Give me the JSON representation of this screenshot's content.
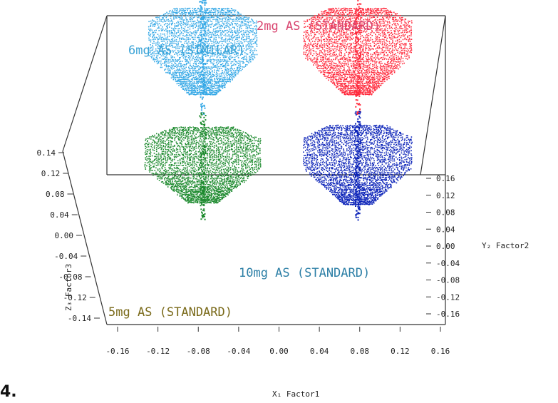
{
  "chart_data": {
    "type": "scatter",
    "title": "",
    "xlabel": "X₁ Factor1",
    "ylabel": "Y₂ Factor2",
    "zlabel": "Z₃ Factor3",
    "xlim": [
      -0.16,
      0.16
    ],
    "ylim": [
      -0.16,
      0.16
    ],
    "zlim": [
      -0.14,
      0.14
    ],
    "x_ticks": [
      "-0.16",
      "-0.12",
      "-0.08",
      "-0.04",
      "0.00",
      "0.04",
      "0.08",
      "0.12",
      "0.16"
    ],
    "y_ticks": [
      "0.16",
      "0.12",
      "0.08",
      "0.04",
      "0.00",
      "-0.04",
      "-0.08",
      "-0.12",
      "-0.16"
    ],
    "z_ticks": [
      "0.14",
      "0.12",
      "0.08",
      "0.04",
      "0.00",
      "-0.04",
      "-0.08",
      "-0.12",
      "-0.14"
    ],
    "series": [
      {
        "name": "2mg AS (STANDARD)",
        "color": "#ff2a3c",
        "label_color": "#d8436e",
        "center": {
          "x": 0.08,
          "y": -0.02,
          "z": 0.09
        }
      },
      {
        "name": "6mg AS (SIMILAR)",
        "color": "#35a8e6",
        "label_color": "#3aa3d6",
        "center": {
          "x": -0.08,
          "y": -0.02,
          "z": 0.09
        }
      },
      {
        "name": "10mg AS (STANDARD)",
        "color": "#0a22b8",
        "label_color": "#2c7fa6",
        "center": {
          "x": 0.08,
          "y": -0.02,
          "z": 0.0
        }
      },
      {
        "name": "5mg AS (STANDARD)",
        "color": "#1d8a2e",
        "label_color": "#7a6a1a",
        "center": {
          "x": -0.08,
          "y": -0.02,
          "z": 0.0
        }
      }
    ]
  },
  "figure": {
    "panel_marker": "4."
  }
}
